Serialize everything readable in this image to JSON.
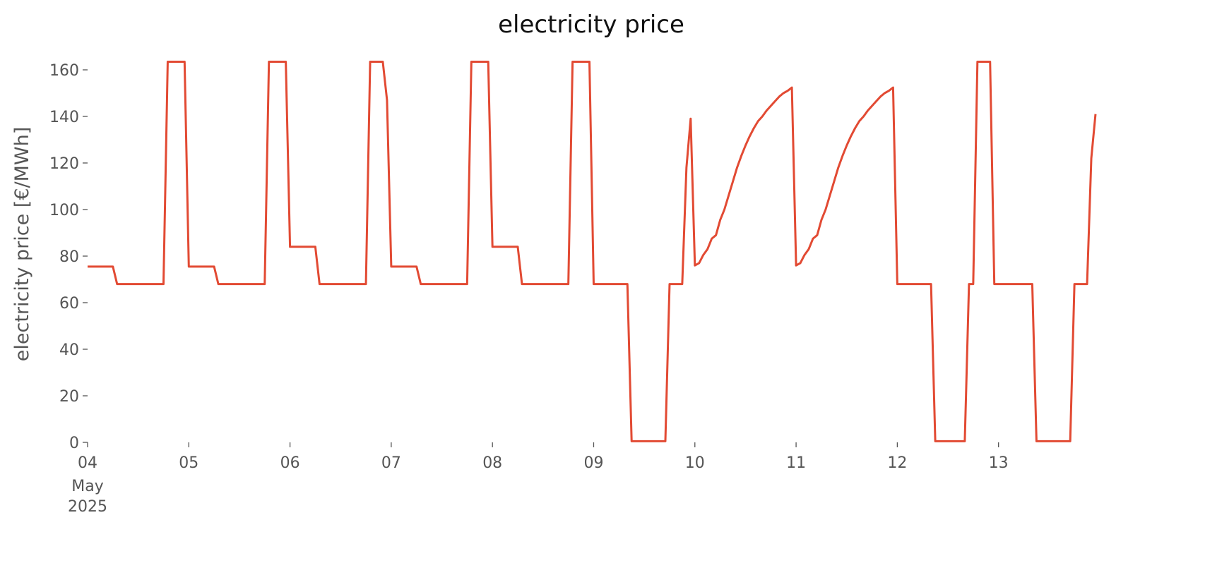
{
  "chart_data": {
    "type": "line",
    "title": "electricity price",
    "ylabel": "electricity price [€/MWh]",
    "xtick_month": "May",
    "xtick_year": "2025",
    "x": [
      0,
      6,
      7,
      18,
      19,
      23,
      24,
      30,
      31,
      42,
      43,
      47,
      48,
      54,
      55,
      66,
      67,
      70,
      71,
      72,
      78,
      79,
      90,
      91,
      95,
      96,
      102,
      103,
      114,
      115,
      119,
      120,
      128,
      129,
      137,
      138,
      141,
      142,
      143,
      144,
      145,
      146,
      147,
      148,
      149,
      150,
      151,
      152,
      153,
      154,
      155,
      156,
      157,
      158,
      159,
      160,
      161,
      162,
      163,
      164,
      165,
      166,
      167,
      168,
      169,
      170,
      171,
      172,
      173,
      174,
      175,
      176,
      177,
      178,
      179,
      180,
      181,
      182,
      183,
      184,
      185,
      186,
      187,
      188,
      189,
      190,
      191,
      192,
      200,
      201,
      208,
      209,
      210,
      211,
      214,
      215,
      224,
      225,
      233,
      234,
      237,
      238,
      239
    ],
    "series": [
      {
        "name": "electricity price",
        "color": "#e24a33",
        "values": [
          75.5,
          75.5,
          68,
          68,
          163.5,
          163.5,
          75.5,
          75.5,
          68,
          68,
          163.5,
          163.5,
          84,
          84,
          68,
          68,
          163.5,
          163.5,
          147,
          75.5,
          75.5,
          68,
          68,
          163.5,
          163.5,
          84,
          84,
          68,
          68,
          163.5,
          163.5,
          68,
          68,
          0.5,
          0.5,
          68,
          68,
          118,
          139,
          76,
          77,
          80.5,
          83,
          87.5,
          89,
          95.5,
          100,
          106,
          112,
          118,
          123,
          127.5,
          131.5,
          135,
          138,
          140,
          142.5,
          144.5,
          146.5,
          148.5,
          150,
          151,
          152.4,
          76,
          77,
          80.5,
          83,
          87.5,
          89,
          95.5,
          100,
          106,
          112,
          118,
          123,
          127.5,
          131.5,
          135,
          138,
          140,
          142.5,
          144.5,
          146.5,
          148.5,
          150,
          151,
          152.4,
          68,
          68,
          0.5,
          0.5,
          68,
          68,
          163.5,
          163.5,
          68,
          68,
          0.5,
          0.5,
          68,
          68,
          122,
          141
        ]
      }
    ],
    "xlim": [
      0,
      239
    ],
    "ylim": [
      0,
      168
    ],
    "xticks": [
      {
        "value": 0,
        "label": "04"
      },
      {
        "value": 24,
        "label": "05"
      },
      {
        "value": 48,
        "label": "06"
      },
      {
        "value": 72,
        "label": "07"
      },
      {
        "value": 96,
        "label": "08"
      },
      {
        "value": 120,
        "label": "09"
      },
      {
        "value": 144,
        "label": "10"
      },
      {
        "value": 168,
        "label": "11"
      },
      {
        "value": 192,
        "label": "12"
      },
      {
        "value": 216,
        "label": "13"
      }
    ],
    "yticks": [
      0,
      20,
      40,
      60,
      80,
      100,
      120,
      140,
      160
    ],
    "grid": false
  }
}
